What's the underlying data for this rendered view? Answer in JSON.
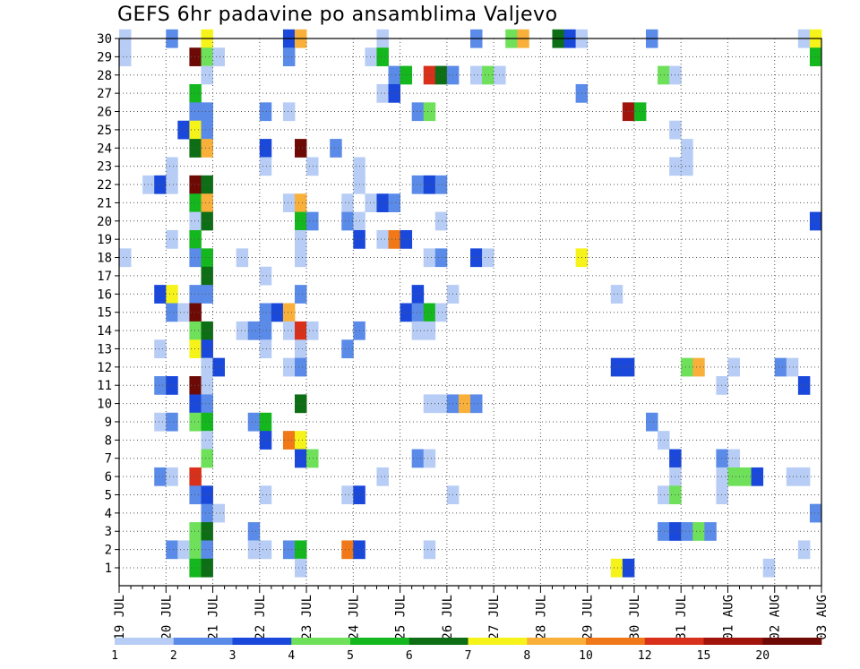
{
  "chart_data": {
    "type": "heatmap",
    "title": "GEFS 6hr padavine po ansamblima Valjevo",
    "y_labels": [
      "1",
      "2",
      "3",
      "4",
      "5",
      "6",
      "7",
      "8",
      "9",
      "10",
      "11",
      "12",
      "13",
      "14",
      "15",
      "16",
      "17",
      "18",
      "19",
      "20",
      "21",
      "22",
      "23",
      "24",
      "25",
      "26",
      "27",
      "28",
      "29",
      "30"
    ],
    "x_labels": [
      "19 JUL",
      "20 JUL",
      "21 JUL",
      "22 JUL",
      "23 JUL",
      "24 JUL",
      "25 JUL",
      "26 JUL",
      "27 JUL",
      "28 JUL",
      "29 JUL",
      "30 JUL",
      "31 JUL",
      "01 AUG",
      "02 AUG",
      "03 AUG"
    ],
    "steps_per_day": 4,
    "grid": "dotted",
    "legend": {
      "placement": "bottom",
      "labels": [
        "1",
        "2",
        "3",
        "4",
        "5",
        "6",
        "7",
        "8",
        "10",
        "12",
        "15",
        "20"
      ],
      "colors": [
        "#b7cdf5",
        "#5b8be8",
        "#1a48da",
        "#6fe05a",
        "#14b81e",
        "#0e6e16",
        "#f6f31a",
        "#f8b03a",
        "#f07818",
        "#d8301a",
        "#a0140c",
        "#6e0a06"
      ]
    },
    "cells": [
      {
        "x": 0,
        "y": 30,
        "c": 0
      },
      {
        "x": 4,
        "y": 30,
        "c": 1
      },
      {
        "x": 7,
        "y": 30,
        "c": 6
      },
      {
        "x": 14,
        "y": 30,
        "c": 2
      },
      {
        "x": 15,
        "y": 30,
        "c": 7
      },
      {
        "x": 22,
        "y": 30,
        "c": 0
      },
      {
        "x": 30,
        "y": 30,
        "c": 1
      },
      {
        "x": 33,
        "y": 30,
        "c": 3
      },
      {
        "x": 34,
        "y": 30,
        "c": 7
      },
      {
        "x": 37,
        "y": 30,
        "c": 5
      },
      {
        "x": 38,
        "y": 30,
        "c": 2
      },
      {
        "x": 39,
        "y": 30,
        "c": 0
      },
      {
        "x": 45,
        "y": 30,
        "c": 1
      },
      {
        "x": 58,
        "y": 30,
        "c": 0
      },
      {
        "x": 59,
        "y": 30,
        "c": 6
      },
      {
        "x": 0,
        "y": 29,
        "c": 0
      },
      {
        "x": 6,
        "y": 29,
        "c": 11
      },
      {
        "x": 7,
        "y": 29,
        "c": 3
      },
      {
        "x": 8,
        "y": 29,
        "c": 0
      },
      {
        "x": 14,
        "y": 29,
        "c": 1
      },
      {
        "x": 21,
        "y": 29,
        "c": 0
      },
      {
        "x": 22,
        "y": 29,
        "c": 4
      },
      {
        "x": 59,
        "y": 29,
        "c": 4
      },
      {
        "x": 7,
        "y": 28,
        "c": 0
      },
      {
        "x": 23,
        "y": 28,
        "c": 1
      },
      {
        "x": 24,
        "y": 28,
        "c": 4
      },
      {
        "x": 26,
        "y": 28,
        "c": 9
      },
      {
        "x": 27,
        "y": 28,
        "c": 5
      },
      {
        "x": 28,
        "y": 28,
        "c": 1
      },
      {
        "x": 30,
        "y": 28,
        "c": 0
      },
      {
        "x": 31,
        "y": 28,
        "c": 3
      },
      {
        "x": 32,
        "y": 28,
        "c": 0
      },
      {
        "x": 46,
        "y": 28,
        "c": 3
      },
      {
        "x": 47,
        "y": 28,
        "c": 0
      },
      {
        "x": 6,
        "y": 27,
        "c": 4
      },
      {
        "x": 22,
        "y": 27,
        "c": 0
      },
      {
        "x": 23,
        "y": 27,
        "c": 2
      },
      {
        "x": 39,
        "y": 27,
        "c": 1
      },
      {
        "x": 6,
        "y": 26,
        "c": 1
      },
      {
        "x": 7,
        "y": 26,
        "c": 1
      },
      {
        "x": 12,
        "y": 26,
        "c": 1
      },
      {
        "x": 14,
        "y": 26,
        "c": 0
      },
      {
        "x": 25,
        "y": 26,
        "c": 1
      },
      {
        "x": 26,
        "y": 26,
        "c": 3
      },
      {
        "x": 43,
        "y": 26,
        "c": 10
      },
      {
        "x": 44,
        "y": 26,
        "c": 4
      },
      {
        "x": 5,
        "y": 25,
        "c": 2
      },
      {
        "x": 6,
        "y": 25,
        "c": 6
      },
      {
        "x": 7,
        "y": 25,
        "c": 1
      },
      {
        "x": 47,
        "y": 25,
        "c": 0
      },
      {
        "x": 6,
        "y": 24,
        "c": 5
      },
      {
        "x": 7,
        "y": 24,
        "c": 7
      },
      {
        "x": 12,
        "y": 24,
        "c": 2
      },
      {
        "x": 15,
        "y": 24,
        "c": 11
      },
      {
        "x": 18,
        "y": 24,
        "c": 1
      },
      {
        "x": 48,
        "y": 24,
        "c": 0
      },
      {
        "x": 4,
        "y": 23,
        "c": 0
      },
      {
        "x": 12,
        "y": 23,
        "c": 0
      },
      {
        "x": 16,
        "y": 23,
        "c": 0
      },
      {
        "x": 20,
        "y": 23,
        "c": 0
      },
      {
        "x": 47,
        "y": 23,
        "c": 0
      },
      {
        "x": 48,
        "y": 23,
        "c": 0
      },
      {
        "x": 2,
        "y": 22,
        "c": 0
      },
      {
        "x": 3,
        "y": 22,
        "c": 2
      },
      {
        "x": 4,
        "y": 22,
        "c": 0
      },
      {
        "x": 6,
        "y": 22,
        "c": 11
      },
      {
        "x": 7,
        "y": 22,
        "c": 5
      },
      {
        "x": 20,
        "y": 22,
        "c": 0
      },
      {
        "x": 25,
        "y": 22,
        "c": 1
      },
      {
        "x": 26,
        "y": 22,
        "c": 2
      },
      {
        "x": 27,
        "y": 22,
        "c": 1
      },
      {
        "x": 6,
        "y": 21,
        "c": 4
      },
      {
        "x": 7,
        "y": 21,
        "c": 7
      },
      {
        "x": 14,
        "y": 21,
        "c": 0
      },
      {
        "x": 15,
        "y": 21,
        "c": 7
      },
      {
        "x": 19,
        "y": 21,
        "c": 0
      },
      {
        "x": 21,
        "y": 21,
        "c": 0
      },
      {
        "x": 22,
        "y": 21,
        "c": 2
      },
      {
        "x": 23,
        "y": 21,
        "c": 1
      },
      {
        "x": 6,
        "y": 20,
        "c": 0
      },
      {
        "x": 7,
        "y": 20,
        "c": 5
      },
      {
        "x": 15,
        "y": 20,
        "c": 4
      },
      {
        "x": 16,
        "y": 20,
        "c": 1
      },
      {
        "x": 19,
        "y": 20,
        "c": 1
      },
      {
        "x": 20,
        "y": 20,
        "c": 0
      },
      {
        "x": 27,
        "y": 20,
        "c": 0
      },
      {
        "x": 59,
        "y": 20,
        "c": 2
      },
      {
        "x": 4,
        "y": 19,
        "c": 0
      },
      {
        "x": 6,
        "y": 19,
        "c": 4
      },
      {
        "x": 15,
        "y": 19,
        "c": 0
      },
      {
        "x": 20,
        "y": 19,
        "c": 2
      },
      {
        "x": 22,
        "y": 19,
        "c": 0
      },
      {
        "x": 23,
        "y": 19,
        "c": 8
      },
      {
        "x": 24,
        "y": 19,
        "c": 2
      },
      {
        "x": 0,
        "y": 18,
        "c": 0
      },
      {
        "x": 6,
        "y": 18,
        "c": 1
      },
      {
        "x": 7,
        "y": 18,
        "c": 4
      },
      {
        "x": 10,
        "y": 18,
        "c": 0
      },
      {
        "x": 15,
        "y": 18,
        "c": 0
      },
      {
        "x": 26,
        "y": 18,
        "c": 0
      },
      {
        "x": 27,
        "y": 18,
        "c": 1
      },
      {
        "x": 30,
        "y": 18,
        "c": 2
      },
      {
        "x": 31,
        "y": 18,
        "c": 0
      },
      {
        "x": 39,
        "y": 18,
        "c": 6
      },
      {
        "x": 7,
        "y": 17,
        "c": 5
      },
      {
        "x": 12,
        "y": 17,
        "c": 0
      },
      {
        "x": 3,
        "y": 16,
        "c": 2
      },
      {
        "x": 4,
        "y": 16,
        "c": 6
      },
      {
        "x": 6,
        "y": 16,
        "c": 1
      },
      {
        "x": 7,
        "y": 16,
        "c": 1
      },
      {
        "x": 15,
        "y": 16,
        "c": 1
      },
      {
        "x": 25,
        "y": 16,
        "c": 2
      },
      {
        "x": 28,
        "y": 16,
        "c": 0
      },
      {
        "x": 42,
        "y": 16,
        "c": 0
      },
      {
        "x": 4,
        "y": 15,
        "c": 1
      },
      {
        "x": 5,
        "y": 15,
        "c": 0
      },
      {
        "x": 6,
        "y": 15,
        "c": 11
      },
      {
        "x": 12,
        "y": 15,
        "c": 1
      },
      {
        "x": 13,
        "y": 15,
        "c": 2
      },
      {
        "x": 14,
        "y": 15,
        "c": 7
      },
      {
        "x": 24,
        "y": 15,
        "c": 2
      },
      {
        "x": 25,
        "y": 15,
        "c": 1
      },
      {
        "x": 26,
        "y": 15,
        "c": 4
      },
      {
        "x": 27,
        "y": 15,
        "c": 0
      },
      {
        "x": 6,
        "y": 14,
        "c": 3
      },
      {
        "x": 7,
        "y": 14,
        "c": 5
      },
      {
        "x": 10,
        "y": 14,
        "c": 0
      },
      {
        "x": 11,
        "y": 14,
        "c": 1
      },
      {
        "x": 12,
        "y": 14,
        "c": 1
      },
      {
        "x": 14,
        "y": 14,
        "c": 0
      },
      {
        "x": 15,
        "y": 14,
        "c": 9
      },
      {
        "x": 16,
        "y": 14,
        "c": 0
      },
      {
        "x": 20,
        "y": 14,
        "c": 1
      },
      {
        "x": 25,
        "y": 14,
        "c": 0
      },
      {
        "x": 26,
        "y": 14,
        "c": 0
      },
      {
        "x": 3,
        "y": 13,
        "c": 0
      },
      {
        "x": 6,
        "y": 13,
        "c": 6
      },
      {
        "x": 7,
        "y": 13,
        "c": 2
      },
      {
        "x": 12,
        "y": 13,
        "c": 0
      },
      {
        "x": 15,
        "y": 13,
        "c": 0
      },
      {
        "x": 19,
        "y": 13,
        "c": 1
      },
      {
        "x": 7,
        "y": 12,
        "c": 0
      },
      {
        "x": 8,
        "y": 12,
        "c": 2
      },
      {
        "x": 14,
        "y": 12,
        "c": 0
      },
      {
        "x": 15,
        "y": 12,
        "c": 1
      },
      {
        "x": 42,
        "y": 12,
        "c": 2
      },
      {
        "x": 43,
        "y": 12,
        "c": 2
      },
      {
        "x": 48,
        "y": 12,
        "c": 3
      },
      {
        "x": 49,
        "y": 12,
        "c": 7
      },
      {
        "x": 52,
        "y": 12,
        "c": 0
      },
      {
        "x": 56,
        "y": 12,
        "c": 1
      },
      {
        "x": 57,
        "y": 12,
        "c": 0
      },
      {
        "x": 3,
        "y": 11,
        "c": 1
      },
      {
        "x": 4,
        "y": 11,
        "c": 2
      },
      {
        "x": 6,
        "y": 11,
        "c": 11
      },
      {
        "x": 7,
        "y": 11,
        "c": 0
      },
      {
        "x": 51,
        "y": 11,
        "c": 0
      },
      {
        "x": 58,
        "y": 11,
        "c": 2
      },
      {
        "x": 6,
        "y": 10,
        "c": 2
      },
      {
        "x": 7,
        "y": 10,
        "c": 1
      },
      {
        "x": 15,
        "y": 10,
        "c": 5
      },
      {
        "x": 26,
        "y": 10,
        "c": 0
      },
      {
        "x": 27,
        "y": 10,
        "c": 0
      },
      {
        "x": 28,
        "y": 10,
        "c": 1
      },
      {
        "x": 29,
        "y": 10,
        "c": 7
      },
      {
        "x": 30,
        "y": 10,
        "c": 1
      },
      {
        "x": 3,
        "y": 9,
        "c": 0
      },
      {
        "x": 4,
        "y": 9,
        "c": 1
      },
      {
        "x": 6,
        "y": 9,
        "c": 3
      },
      {
        "x": 7,
        "y": 9,
        "c": 4
      },
      {
        "x": 11,
        "y": 9,
        "c": 1
      },
      {
        "x": 12,
        "y": 9,
        "c": 4
      },
      {
        "x": 45,
        "y": 9,
        "c": 1
      },
      {
        "x": 7,
        "y": 8,
        "c": 0
      },
      {
        "x": 12,
        "y": 8,
        "c": 2
      },
      {
        "x": 14,
        "y": 8,
        "c": 8
      },
      {
        "x": 15,
        "y": 8,
        "c": 6
      },
      {
        "x": 46,
        "y": 8,
        "c": 0
      },
      {
        "x": 7,
        "y": 7,
        "c": 3
      },
      {
        "x": 15,
        "y": 7,
        "c": 2
      },
      {
        "x": 16,
        "y": 7,
        "c": 3
      },
      {
        "x": 25,
        "y": 7,
        "c": 1
      },
      {
        "x": 26,
        "y": 7,
        "c": 0
      },
      {
        "x": 47,
        "y": 7,
        "c": 2
      },
      {
        "x": 51,
        "y": 7,
        "c": 1
      },
      {
        "x": 52,
        "y": 7,
        "c": 0
      },
      {
        "x": 3,
        "y": 6,
        "c": 1
      },
      {
        "x": 4,
        "y": 6,
        "c": 0
      },
      {
        "x": 6,
        "y": 6,
        "c": 9
      },
      {
        "x": 22,
        "y": 6,
        "c": 0
      },
      {
        "x": 47,
        "y": 6,
        "c": 0
      },
      {
        "x": 51,
        "y": 6,
        "c": 0
      },
      {
        "x": 52,
        "y": 6,
        "c": 3
      },
      {
        "x": 53,
        "y": 6,
        "c": 3
      },
      {
        "x": 54,
        "y": 6,
        "c": 2
      },
      {
        "x": 57,
        "y": 6,
        "c": 0
      },
      {
        "x": 58,
        "y": 6,
        "c": 0
      },
      {
        "x": 6,
        "y": 5,
        "c": 1
      },
      {
        "x": 7,
        "y": 5,
        "c": 2
      },
      {
        "x": 12,
        "y": 5,
        "c": 0
      },
      {
        "x": 19,
        "y": 5,
        "c": 0
      },
      {
        "x": 20,
        "y": 5,
        "c": 2
      },
      {
        "x": 28,
        "y": 5,
        "c": 0
      },
      {
        "x": 46,
        "y": 5,
        "c": 0
      },
      {
        "x": 47,
        "y": 5,
        "c": 3
      },
      {
        "x": 51,
        "y": 5,
        "c": 0
      },
      {
        "x": 7,
        "y": 4,
        "c": 1
      },
      {
        "x": 8,
        "y": 4,
        "c": 0
      },
      {
        "x": 59,
        "y": 4,
        "c": 1
      },
      {
        "x": 6,
        "y": 3,
        "c": 3
      },
      {
        "x": 7,
        "y": 3,
        "c": 5
      },
      {
        "x": 11,
        "y": 3,
        "c": 1
      },
      {
        "x": 46,
        "y": 3,
        "c": 1
      },
      {
        "x": 47,
        "y": 3,
        "c": 2
      },
      {
        "x": 48,
        "y": 3,
        "c": 1
      },
      {
        "x": 49,
        "y": 3,
        "c": 3
      },
      {
        "x": 50,
        "y": 3,
        "c": 1
      },
      {
        "x": 4,
        "y": 2,
        "c": 1
      },
      {
        "x": 5,
        "y": 2,
        "c": 0
      },
      {
        "x": 6,
        "y": 2,
        "c": 3
      },
      {
        "x": 7,
        "y": 2,
        "c": 1
      },
      {
        "x": 11,
        "y": 2,
        "c": 0
      },
      {
        "x": 12,
        "y": 2,
        "c": 0
      },
      {
        "x": 14,
        "y": 2,
        "c": 1
      },
      {
        "x": 15,
        "y": 2,
        "c": 4
      },
      {
        "x": 19,
        "y": 2,
        "c": 8
      },
      {
        "x": 20,
        "y": 2,
        "c": 2
      },
      {
        "x": 26,
        "y": 2,
        "c": 0
      },
      {
        "x": 58,
        "y": 2,
        "c": 0
      },
      {
        "x": 6,
        "y": 1,
        "c": 4
      },
      {
        "x": 7,
        "y": 1,
        "c": 5
      },
      {
        "x": 15,
        "y": 1,
        "c": 0
      },
      {
        "x": 42,
        "y": 1,
        "c": 6
      },
      {
        "x": 43,
        "y": 1,
        "c": 2
      },
      {
        "x": 55,
        "y": 1,
        "c": 0
      }
    ]
  }
}
